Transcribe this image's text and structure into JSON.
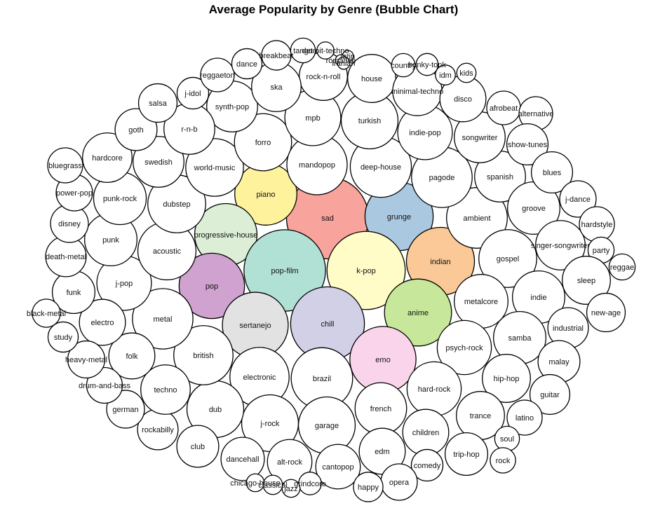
{
  "chart_data": {
    "type": "bubble",
    "title": "Average Popularity by Genre (Bubble Chart)",
    "value_label": "Average Popularity",
    "highlight_colors": [
      "#f8a39b",
      "#aac8e0",
      "#fef29c",
      "#dcefd6",
      "#b1e1d5",
      "#fffcc8",
      "#fbc997",
      "#cfa2cf",
      "#c7e89a",
      "#e2e2e2",
      "#d2d0e6",
      "#fad4ea"
    ],
    "bubbles": [
      {
        "label": "sad",
        "value": 59.7,
        "color": "#f8a39b"
      },
      {
        "label": "grunge",
        "value": 49.6,
        "color": "#aac8e0"
      },
      {
        "label": "piano",
        "value": 45.2,
        "color": "#fef29c"
      },
      {
        "label": "progressive-house",
        "value": 45.4,
        "color": "#dcefd6"
      },
      {
        "label": "pop-film",
        "value": 59.3,
        "color": "#b1e1d5"
      },
      {
        "label": "k-pop",
        "value": 56.9,
        "color": "#fffcc8"
      },
      {
        "label": "indian",
        "value": 49.5,
        "color": "#fbc997"
      },
      {
        "label": "pop",
        "value": 47.6,
        "color": "#cfa2cf"
      },
      {
        "label": "anime",
        "value": 48.8,
        "color": "#c7e89a"
      },
      {
        "label": "sertanejo",
        "value": 47.9,
        "color": "#e2e2e2"
      },
      {
        "label": "chill",
        "value": 53.7,
        "color": "#d2d0e6"
      },
      {
        "label": "emo",
        "value": 48.1,
        "color": "#fad4ea"
      },
      {
        "label": "ambient",
        "value": 44.2,
        "color": "#ffffff"
      },
      {
        "label": "gospel",
        "value": 42.1,
        "color": "#ffffff"
      },
      {
        "label": "metalcore",
        "value": 39.1,
        "color": "#ffffff"
      },
      {
        "label": "psych-rock",
        "value": 39.4,
        "color": "#ffffff"
      },
      {
        "label": "hard-rock",
        "value": 39.4,
        "color": "#ffffff"
      },
      {
        "label": "french",
        "value": 37.5,
        "color": "#ffffff"
      },
      {
        "label": "brazil",
        "value": 44.7,
        "color": "#ffffff"
      },
      {
        "label": "garage",
        "value": 41.3,
        "color": "#ffffff"
      },
      {
        "label": "electronic",
        "value": 43.1,
        "color": "#ffffff"
      },
      {
        "label": "j-rock",
        "value": 41.3,
        "color": "#ffffff"
      },
      {
        "label": "dub",
        "value": 41.3,
        "color": "#ffffff"
      },
      {
        "label": "british",
        "value": 43.1,
        "color": "#ffffff"
      },
      {
        "label": "metal",
        "value": 44.0,
        "color": "#ffffff"
      },
      {
        "label": "j-pop",
        "value": 39.7,
        "color": "#ffffff"
      },
      {
        "label": "acoustic",
        "value": 42.3,
        "color": "#ffffff"
      },
      {
        "label": "dubstep",
        "value": 42.1,
        "color": "#ffffff"
      },
      {
        "label": "world-music",
        "value": 42.0,
        "color": "#ffffff"
      },
      {
        "label": "forro",
        "value": 41.6,
        "color": "#ffffff"
      },
      {
        "label": "mandopop",
        "value": 43.9,
        "color": "#ffffff"
      },
      {
        "label": "deep-house",
        "value": 44.5,
        "color": "#ffffff"
      },
      {
        "label": "pagode",
        "value": 44.1,
        "color": "#ffffff"
      },
      {
        "label": "spanish",
        "value": 37.0,
        "color": "#ffffff"
      },
      {
        "label": "groove",
        "value": 38.1,
        "color": "#ffffff"
      },
      {
        "label": "punk",
        "value": 38.1,
        "color": "#ffffff"
      },
      {
        "label": "punk-rock",
        "value": 38.3,
        "color": "#ffffff"
      },
      {
        "label": "swedish",
        "value": 37.0,
        "color": "#ffffff"
      },
      {
        "label": "mpb",
        "value": 40.7,
        "color": "#ffffff"
      },
      {
        "label": "turkish",
        "value": 41.3,
        "color": "#ffffff"
      },
      {
        "label": "indie-pop",
        "value": 39.7,
        "color": "#ffffff"
      },
      {
        "label": "songwriter",
        "value": 37.0,
        "color": "#ffffff"
      },
      {
        "label": "synth-pop",
        "value": 37.0,
        "color": "#ffffff"
      },
      {
        "label": "r-n-b",
        "value": 37.0,
        "color": "#ffffff"
      },
      {
        "label": "hardcore",
        "value": 36.0,
        "color": "#ffffff"
      },
      {
        "label": "rock-n-roll",
        "value": 35.0,
        "color": "#ffffff"
      },
      {
        "label": "ska",
        "value": 36.0,
        "color": "#ffffff"
      },
      {
        "label": "house",
        "value": 35.0,
        "color": "#ffffff"
      },
      {
        "label": "minimal-techno",
        "value": 35.8,
        "color": "#ffffff"
      },
      {
        "label": "disco",
        "value": 33.5,
        "color": "#ffffff"
      },
      {
        "label": "singer-songwriter",
        "value": 36.0,
        "color": "#ffffff"
      },
      {
        "label": "indie",
        "value": 38.1,
        "color": "#ffffff"
      },
      {
        "label": "samba",
        "value": 38.1,
        "color": "#ffffff"
      },
      {
        "label": "hip-hop",
        "value": 35.0,
        "color": "#ffffff"
      },
      {
        "label": "trance",
        "value": 35.0,
        "color": "#ffffff"
      },
      {
        "label": "children",
        "value": 33.5,
        "color": "#ffffff"
      },
      {
        "label": "edm",
        "value": 33.5,
        "color": "#ffffff"
      },
      {
        "label": "cantopop",
        "value": 32.4,
        "color": "#ffffff"
      },
      {
        "label": "alt-rock",
        "value": 32.4,
        "color": "#ffffff"
      },
      {
        "label": "dancehall",
        "value": 31.5,
        "color": "#ffffff"
      },
      {
        "label": "club",
        "value": 30.5,
        "color": "#ffffff"
      },
      {
        "label": "rockabilly",
        "value": 29.5,
        "color": "#ffffff"
      },
      {
        "label": "techno",
        "value": 36.0,
        "color": "#ffffff"
      },
      {
        "label": "folk",
        "value": 33.5,
        "color": "#ffffff"
      },
      {
        "label": "electro",
        "value": 33.5,
        "color": "#ffffff"
      },
      {
        "label": "funk",
        "value": 31.0,
        "color": "#ffffff"
      },
      {
        "label": "death-metal",
        "value": 29.5,
        "color": "#ffffff"
      },
      {
        "label": "disney",
        "value": 27.5,
        "color": "#ffffff"
      },
      {
        "label": "power-pop",
        "value": 26.5,
        "color": "#ffffff"
      },
      {
        "label": "bluegrass",
        "value": 25.5,
        "color": "#ffffff"
      },
      {
        "label": "goth",
        "value": 30.5,
        "color": "#ffffff"
      },
      {
        "label": "salsa",
        "value": 28.0,
        "color": "#ffffff"
      },
      {
        "label": "j-idol",
        "value": 23.0,
        "color": "#ffffff"
      },
      {
        "label": "reggaeton",
        "value": 24.5,
        "color": "#ffffff"
      },
      {
        "label": "dance",
        "value": 22.0,
        "color": "#ffffff"
      },
      {
        "label": "breakbeat",
        "value": 21.5,
        "color": "#ffffff"
      },
      {
        "label": "tango",
        "value": 18.0,
        "color": "#ffffff"
      },
      {
        "label": "detroit-techno",
        "value": 12.5,
        "color": "#ffffff"
      },
      {
        "label": "latin",
        "value": 8.0,
        "color": "#ffffff"
      },
      {
        "label": "romance",
        "value": 8.0,
        "color": "#ffffff"
      },
      {
        "label": "iranian",
        "value": 9.0,
        "color": "#ffffff"
      },
      {
        "label": "country",
        "value": 17.0,
        "color": "#ffffff"
      },
      {
        "label": "honky-tonk",
        "value": 16.0,
        "color": "#ffffff"
      },
      {
        "label": "idm",
        "value": 14.5,
        "color": "#ffffff"
      },
      {
        "label": "kids",
        "value": 14.0,
        "color": "#ffffff"
      },
      {
        "label": "afrobeat",
        "value": 24.5,
        "color": "#ffffff"
      },
      {
        "label": "alternative",
        "value": 24.5,
        "color": "#ffffff"
      },
      {
        "label": "show-tunes",
        "value": 30.0,
        "color": "#ffffff"
      },
      {
        "label": "blues",
        "value": 30.0,
        "color": "#ffffff"
      },
      {
        "label": "j-dance",
        "value": 26.5,
        "color": "#ffffff"
      },
      {
        "label": "hardstyle",
        "value": 25.5,
        "color": "#ffffff"
      },
      {
        "label": "party",
        "value": 19.0,
        "color": "#ffffff"
      },
      {
        "label": "reggae",
        "value": 19.0,
        "color": "#ffffff"
      },
      {
        "label": "sleep",
        "value": 35.0,
        "color": "#ffffff"
      },
      {
        "label": "new-age",
        "value": 28.0,
        "color": "#ffffff"
      },
      {
        "label": "industrial",
        "value": 29.5,
        "color": "#ffffff"
      },
      {
        "label": "malay",
        "value": 30.5,
        "color": "#ffffff"
      },
      {
        "label": "guitar",
        "value": 29.0,
        "color": "#ffffff"
      },
      {
        "label": "latino",
        "value": 25.5,
        "color": "#ffffff"
      },
      {
        "label": "soul",
        "value": 18.0,
        "color": "#ffffff"
      },
      {
        "label": "rock",
        "value": 18.5,
        "color": "#ffffff"
      },
      {
        "label": "trip-hop",
        "value": 31.0,
        "color": "#ffffff"
      },
      {
        "label": "comedy",
        "value": 23.0,
        "color": "#ffffff"
      },
      {
        "label": "opera",
        "value": 26.5,
        "color": "#ffffff"
      },
      {
        "label": "happy",
        "value": 21.5,
        "color": "#ffffff"
      },
      {
        "label": "grindcore",
        "value": 16.5,
        "color": "#ffffff"
      },
      {
        "label": "jazz",
        "value": 13.0,
        "color": "#ffffff"
      },
      {
        "label": "chicago-house",
        "value": 13.0,
        "color": "#ffffff"
      },
      {
        "label": "classical",
        "value": 14.0,
        "color": "#ffffff"
      },
      {
        "label": "german",
        "value": 27.5,
        "color": "#ffffff"
      },
      {
        "label": "drum-and-bass",
        "value": 26.0,
        "color": "#ffffff"
      },
      {
        "label": "heavy-metal",
        "value": 27.0,
        "color": "#ffffff"
      },
      {
        "label": "study",
        "value": 22.0,
        "color": "#ffffff"
      },
      {
        "label": "black-metal",
        "value": 20.5,
        "color": "#ffffff"
      }
    ]
  }
}
